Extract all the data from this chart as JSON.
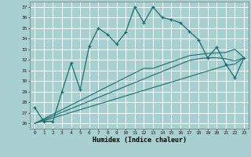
{
  "xlabel": "Humidex (Indice chaleur)",
  "bg_color": "#a8d0d0",
  "grid_color": "#ffffff",
  "line_color": "#1a6e6e",
  "xlim": [
    -0.5,
    23.5
  ],
  "ylim": [
    25.5,
    37.5
  ],
  "xticks": [
    0,
    1,
    2,
    3,
    4,
    5,
    6,
    7,
    8,
    9,
    10,
    11,
    12,
    13,
    14,
    15,
    16,
    17,
    18,
    19,
    20,
    21,
    22,
    23
  ],
  "yticks": [
    26,
    27,
    28,
    29,
    30,
    31,
    32,
    33,
    34,
    35,
    36,
    37
  ],
  "humidex": [
    27.5,
    26.2,
    26.2,
    29.0,
    31.7,
    29.2,
    33.3,
    35.0,
    34.4,
    33.5,
    34.6,
    37.0,
    35.5,
    37.0,
    36.0,
    35.8,
    35.5,
    34.7,
    33.9,
    32.2,
    33.2,
    31.6,
    30.3,
    32.2
  ],
  "trend1": [
    26.0,
    26.43,
    26.87,
    27.3,
    27.74,
    28.17,
    28.6,
    29.04,
    29.47,
    29.9,
    30.34,
    30.77,
    31.2,
    31.2,
    31.5,
    31.8,
    32.1,
    32.4,
    32.5,
    32.6,
    32.65,
    32.7,
    33.0,
    32.2
  ],
  "trend2": [
    26.0,
    26.35,
    26.7,
    27.05,
    27.4,
    27.75,
    28.1,
    28.45,
    28.8,
    29.15,
    29.5,
    29.85,
    30.2,
    30.55,
    30.9,
    31.25,
    31.6,
    31.95,
    32.1,
    32.2,
    32.2,
    32.1,
    31.9,
    32.2
  ],
  "trend3": [
    26.0,
    26.26,
    26.52,
    26.78,
    27.04,
    27.3,
    27.56,
    27.82,
    28.08,
    28.34,
    28.6,
    28.86,
    29.12,
    29.38,
    29.64,
    29.9,
    30.16,
    30.42,
    30.68,
    30.94,
    31.2,
    31.46,
    31.6,
    32.2
  ]
}
